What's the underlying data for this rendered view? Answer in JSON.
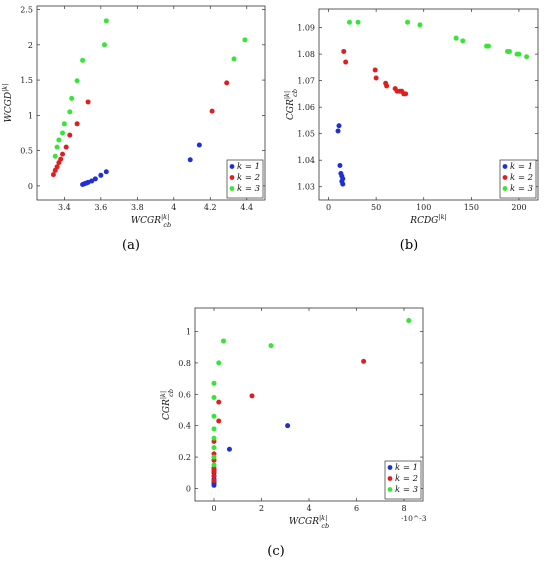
{
  "colors": {
    "k1": "#1f2fd6",
    "k2": "#e01e1e",
    "k3": "#35e635"
  },
  "chart_data": [
    {
      "id": "a",
      "type": "scatter",
      "caption": "(a)",
      "xlabel": "WCGR_cb^{|k|}",
      "ylabel": "WCGD^{|k|}",
      "xlim": [
        3.25,
        4.5
      ],
      "ylim": [
        -0.2,
        2.55
      ],
      "xticks": [
        3.4,
        3.6,
        3.8,
        4,
        4.2,
        4.4
      ],
      "xtick_labels": [
        "3.4",
        "3.6",
        "3.8",
        "4",
        "4.2",
        "4.4"
      ],
      "yticks": [
        0,
        0.5,
        1,
        1.5,
        2,
        2.5
      ],
      "ytick_labels": [
        "0",
        "0.5",
        "1",
        "1.5",
        "2",
        "2.5"
      ],
      "grid": false,
      "legend_position": "bottom-right",
      "series": [
        {
          "name": "k = 1",
          "color": "#1f2fd6",
          "points": [
            [
              3.5,
              0.02
            ],
            [
              3.51,
              0.03
            ],
            [
              3.52,
              0.04
            ],
            [
              3.53,
              0.05
            ],
            [
              3.55,
              0.07
            ],
            [
              3.57,
              0.1
            ],
            [
              3.6,
              0.15
            ],
            [
              3.63,
              0.2
            ],
            [
              4.09,
              0.37
            ],
            [
              4.14,
              0.58
            ]
          ]
        },
        {
          "name": "k = 2",
          "color": "#e01e1e",
          "points": [
            [
              3.34,
              0.16
            ],
            [
              3.35,
              0.22
            ],
            [
              3.36,
              0.27
            ],
            [
              3.37,
              0.33
            ],
            [
              3.38,
              0.38
            ],
            [
              3.39,
              0.45
            ],
            [
              3.41,
              0.55
            ],
            [
              3.43,
              0.72
            ],
            [
              3.47,
              0.88
            ],
            [
              3.53,
              1.19
            ],
            [
              4.21,
              1.06
            ],
            [
              4.29,
              1.46
            ]
          ]
        },
        {
          "name": "k = 3",
          "color": "#35e635",
          "points": [
            [
              3.35,
              0.42
            ],
            [
              3.36,
              0.55
            ],
            [
              3.37,
              0.65
            ],
            [
              3.39,
              0.75
            ],
            [
              3.4,
              0.88
            ],
            [
              3.43,
              1.05
            ],
            [
              3.44,
              1.24
            ],
            [
              3.47,
              1.49
            ],
            [
              3.5,
              1.78
            ],
            [
              3.62,
              2.0
            ],
            [
              3.63,
              2.34
            ],
            [
              4.33,
              1.8
            ],
            [
              4.39,
              2.07
            ]
          ]
        }
      ]
    },
    {
      "id": "b",
      "type": "scatter",
      "caption": "(b)",
      "xlabel": "RCDG^{|k|}",
      "ylabel": "CGR_cb^{|k|}",
      "xlim": [
        -10,
        220
      ],
      "ylim": [
        1.025,
        1.097
      ],
      "xticks": [
        0,
        50,
        100,
        150,
        200
      ],
      "xtick_labels": [
        "0",
        "50",
        "100",
        "150",
        "200"
      ],
      "yticks": [
        1.03,
        1.04,
        1.05,
        1.06,
        1.07,
        1.08,
        1.09
      ],
      "ytick_labels": [
        "1.03",
        "1.04",
        "1.05",
        "1.06",
        "1.07",
        "1.08",
        "1.09"
      ],
      "grid": false,
      "legend_position": "bottom-right",
      "series": [
        {
          "name": "k = 1",
          "color": "#1f2fd6",
          "points": [
            [
              10,
              1.051
            ],
            [
              11,
              1.053
            ],
            [
              12,
              1.038
            ],
            [
              13,
              1.035
            ],
            [
              14,
              1.034
            ],
            [
              14,
              1.032
            ],
            [
              15,
              1.031
            ],
            [
              15,
              1.033
            ]
          ]
        },
        {
          "name": "k = 2",
          "color": "#e01e1e",
          "points": [
            [
              16,
              1.081
            ],
            [
              18,
              1.077
            ],
            [
              49,
              1.074
            ],
            [
              50,
              1.071
            ],
            [
              60,
              1.069
            ],
            [
              61,
              1.068
            ],
            [
              70,
              1.067
            ],
            [
              72,
              1.066
            ],
            [
              75,
              1.066
            ],
            [
              77,
              1.066
            ],
            [
              79,
              1.065
            ],
            [
              81,
              1.065
            ]
          ]
        },
        {
          "name": "k = 3",
          "color": "#35e635",
          "points": [
            [
              22,
              1.092
            ],
            [
              31,
              1.092
            ],
            [
              83,
              1.092
            ],
            [
              96,
              1.091
            ],
            [
              134,
              1.086
            ],
            [
              141,
              1.085
            ],
            [
              166,
              1.083
            ],
            [
              168,
              1.083
            ],
            [
              188,
              1.081
            ],
            [
              190,
              1.081
            ],
            [
              198,
              1.08
            ],
            [
              200,
              1.08
            ],
            [
              208,
              1.079
            ]
          ]
        }
      ]
    },
    {
      "id": "c",
      "type": "scatter",
      "caption": "(c)",
      "xlabel": "WCGR_cb^{|k|}",
      "ylabel": "CGR_cb^{|k|}",
      "x_multiplier": "·10^-3",
      "xlim": [
        -0.0008,
        0.0088
      ],
      "ylim": [
        -0.08,
        1.15
      ],
      "xticks": [
        0,
        0.002,
        0.004,
        0.006,
        0.008
      ],
      "xtick_labels": [
        "0",
        "2",
        "4",
        "6",
        "8"
      ],
      "yticks": [
        0,
        0.2,
        0.4,
        0.6,
        0.8,
        1
      ],
      "ytick_labels": [
        "0",
        "0.2",
        "0.4",
        "0.6",
        "0.8",
        "1"
      ],
      "grid": false,
      "legend_position": "bottom-right",
      "series": [
        {
          "name": "k = 1",
          "color": "#1f2fd6",
          "points": [
            [
              0.0,
              0.02
            ],
            [
              0.0,
              0.04
            ],
            [
              0.0,
              0.06
            ],
            [
              0.0,
              0.08
            ],
            [
              0.0,
              0.1
            ],
            [
              0.0,
              0.12
            ],
            [
              0.0,
              0.03
            ],
            [
              0.0,
              0.05
            ],
            [
              0.00065,
              0.25
            ],
            [
              0.0031,
              0.4
            ]
          ]
        },
        {
          "name": "k = 2",
          "color": "#e01e1e",
          "points": [
            [
              0.0,
              0.05
            ],
            [
              0.0,
              0.08
            ],
            [
              0.0,
              0.11
            ],
            [
              0.0,
              0.13
            ],
            [
              0.0,
              0.18
            ],
            [
              0.0,
              0.22
            ],
            [
              0.0,
              0.3
            ],
            [
              0.0002,
              0.43
            ],
            [
              0.0002,
              0.55
            ],
            [
              0.0016,
              0.59
            ],
            [
              0.0063,
              0.81
            ]
          ]
        },
        {
          "name": "k = 3",
          "color": "#35e635",
          "points": [
            [
              0.0,
              0.15
            ],
            [
              0.0,
              0.2
            ],
            [
              0.0,
              0.26
            ],
            [
              0.0,
              0.32
            ],
            [
              0.0,
              0.38
            ],
            [
              0.0,
              0.46
            ],
            [
              0.0,
              0.58
            ],
            [
              0.0,
              0.67
            ],
            [
              0.0002,
              0.8
            ],
            [
              0.0004,
              0.94
            ],
            [
              0.0024,
              0.91
            ],
            [
              0.0082,
              1.07
            ]
          ]
        }
      ]
    }
  ]
}
